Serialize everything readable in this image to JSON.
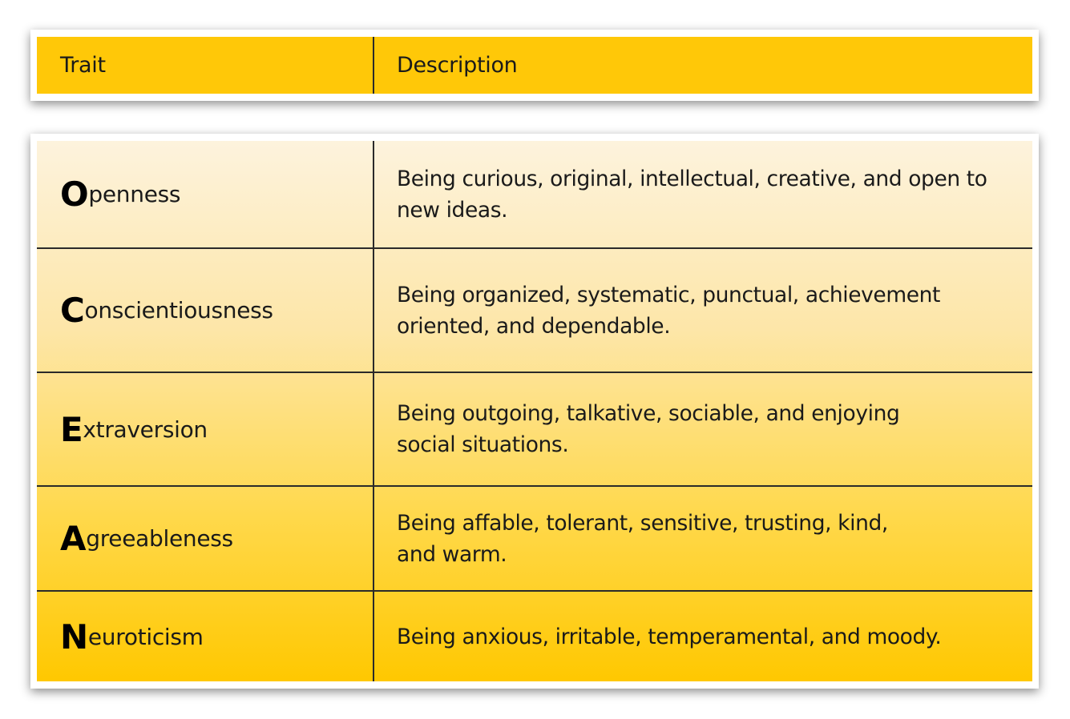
{
  "header": {
    "trait": "Trait",
    "description": "Description"
  },
  "rows": [
    {
      "initial": "O",
      "rest": "penness",
      "description": "Being curious, original, intellectual, creative, and open to new ideas."
    },
    {
      "initial": "C",
      "rest": "onscientiousness",
      "description": "Being organized, systematic, punctual, achievement oriented, and dependable."
    },
    {
      "initial": "E",
      "rest": "xtraversion",
      "description": "Being outgoing, talkative, sociable, and enjoying social situations."
    },
    {
      "initial": "A",
      "rest": "greeableness",
      "description": "Being affable, tolerant, sensitive, trusting, kind, and warm."
    },
    {
      "initial": "N",
      "rest": "euroticism",
      "description": "Being anxious, irritable, temperamental, and moody."
    }
  ],
  "colors": {
    "header": "#ffc808",
    "row_top": "#fdf3dd",
    "row_bottom": "#ffc800"
  }
}
